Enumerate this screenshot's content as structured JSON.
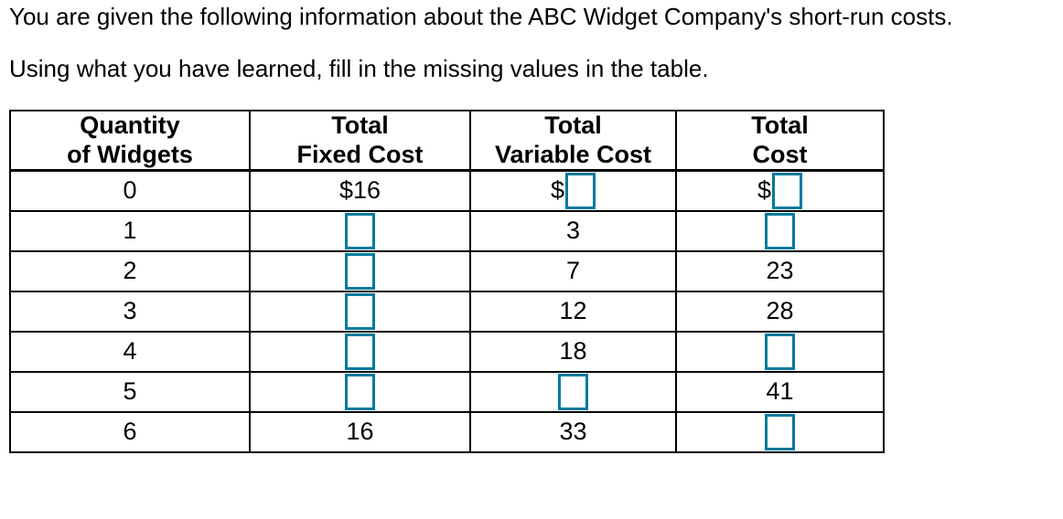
{
  "intro": {
    "line1": "You are given the following information about the ABC Widget Company's short-run costs.",
    "line2": "Using what you have learned, fill in the missing values in the table."
  },
  "colors": {
    "input_box_border": "#007a9c",
    "table_border": "#000000",
    "background": "#ffffff"
  },
  "table": {
    "columns": [
      {
        "key": "quantity",
        "line1": "Quantity",
        "line2": "of Widgets"
      },
      {
        "key": "total-fixed-cost",
        "line1": "Total",
        "line2": "Fixed Cost"
      },
      {
        "key": "total-variable-cost",
        "line1": "Total",
        "line2": "Variable Cost"
      },
      {
        "key": "total-cost",
        "line1": "Total",
        "line2": "Cost"
      }
    ],
    "rows": [
      {
        "cells": [
          {
            "kind": "text",
            "text": "0"
          },
          {
            "kind": "text",
            "text": "$16"
          },
          {
            "kind": "input",
            "prefix": "$",
            "value": ""
          },
          {
            "kind": "input",
            "prefix": "$",
            "value": ""
          }
        ]
      },
      {
        "cells": [
          {
            "kind": "text",
            "text": "1"
          },
          {
            "kind": "input",
            "value": ""
          },
          {
            "kind": "text",
            "text": "3"
          },
          {
            "kind": "input",
            "value": ""
          }
        ]
      },
      {
        "cells": [
          {
            "kind": "text",
            "text": "2"
          },
          {
            "kind": "input",
            "value": ""
          },
          {
            "kind": "text",
            "text": "7"
          },
          {
            "kind": "text",
            "text": "23"
          }
        ]
      },
      {
        "cells": [
          {
            "kind": "text",
            "text": "3"
          },
          {
            "kind": "input",
            "value": ""
          },
          {
            "kind": "text",
            "text": "12"
          },
          {
            "kind": "text",
            "text": "28"
          }
        ]
      },
      {
        "cells": [
          {
            "kind": "text",
            "text": "4"
          },
          {
            "kind": "input",
            "value": ""
          },
          {
            "kind": "text",
            "text": "18"
          },
          {
            "kind": "input",
            "value": ""
          }
        ]
      },
      {
        "cells": [
          {
            "kind": "text",
            "text": "5"
          },
          {
            "kind": "input",
            "value": ""
          },
          {
            "kind": "input",
            "value": ""
          },
          {
            "kind": "text",
            "text": "41"
          }
        ]
      },
      {
        "cells": [
          {
            "kind": "text",
            "text": "6"
          },
          {
            "kind": "text",
            "text": "16"
          },
          {
            "kind": "text",
            "text": "33"
          },
          {
            "kind": "input",
            "value": ""
          }
        ]
      }
    ]
  }
}
